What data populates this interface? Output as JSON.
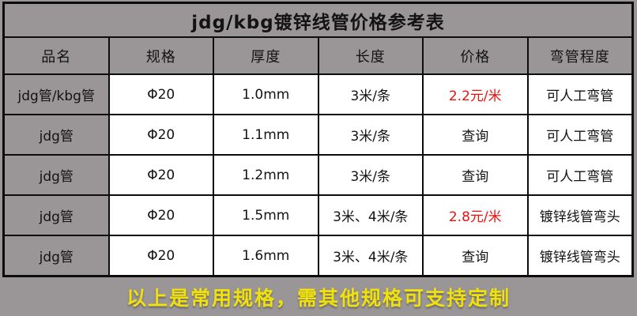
{
  "colors": {
    "gray_bg": "#9a9697",
    "grid_line": "#0c0c0c",
    "cell_white": "#ffffff",
    "text_black": "#131313",
    "price_red": "#e8120e",
    "footer_yellow": "#f0e10c"
  },
  "chart_data": {
    "type": "table",
    "title": "jdg/kbg镀锌线管价格参考表",
    "columns": [
      "品名",
      "规格",
      "厚度",
      "长度",
      "价格",
      "弯管程度"
    ],
    "rows": [
      [
        "jdg管/kbg管",
        "Φ20",
        "1.0mm",
        "3米/条",
        "2.2元/米",
        "可人工弯管"
      ],
      [
        "jdg管",
        "Φ20",
        "1.1mm",
        "3米/条",
        "查询",
        "可人工弯管"
      ],
      [
        "jdg管",
        "Φ20",
        "1.2mm",
        "3米/条",
        "查询",
        "可人工弯管"
      ],
      [
        "jdg管",
        "Φ20",
        "1.5mm",
        "3米、4米/条",
        "2.8元/米",
        "镀锌线管弯头"
      ],
      [
        "jdg管",
        "Φ20",
        "1.6mm",
        "3米、4米/条",
        "查询",
        "镀锌线管弯头"
      ]
    ],
    "red_price_rows": [
      0,
      3
    ],
    "footer_note": "以上是常用规格，需其他规格可支持定制"
  }
}
